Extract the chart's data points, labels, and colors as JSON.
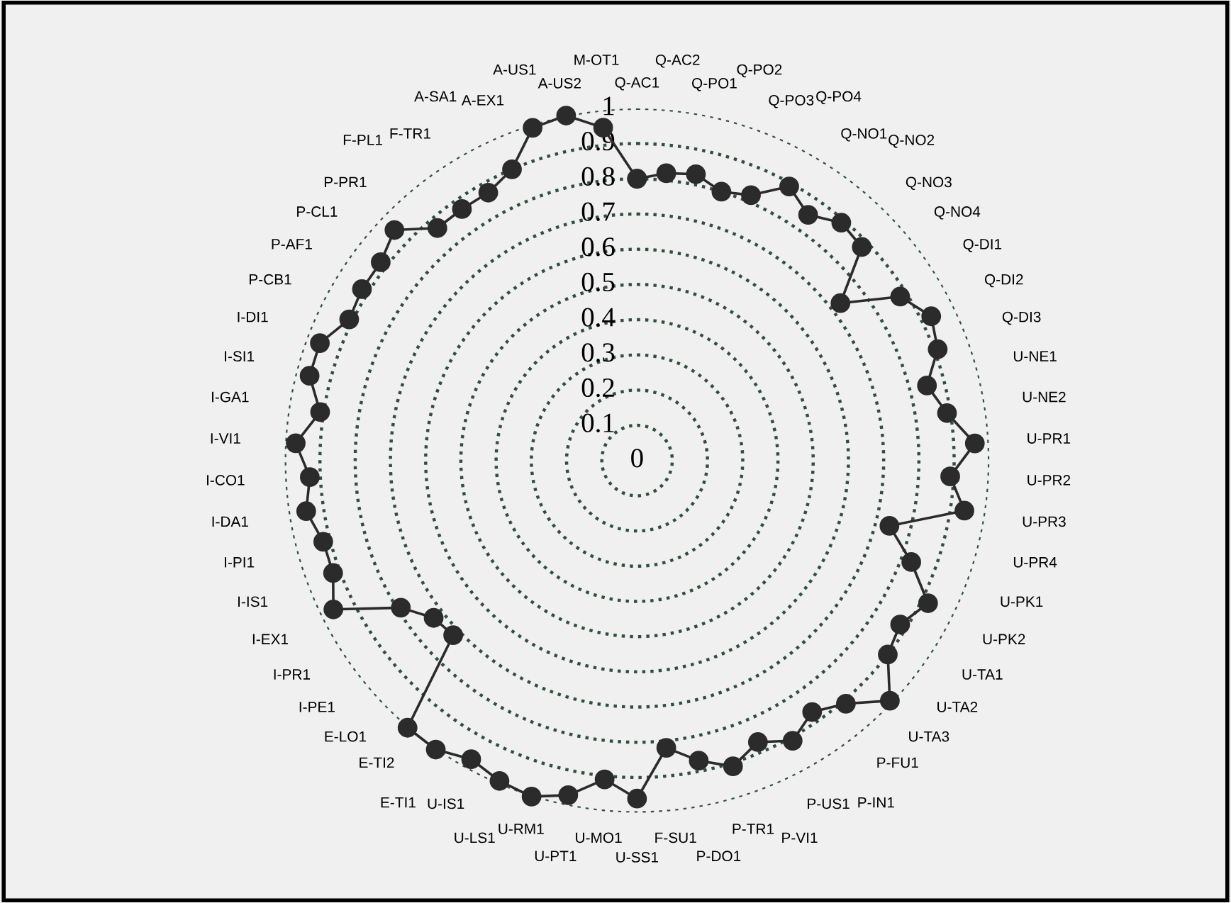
{
  "chart_data": {
    "type": "radar",
    "categories": [
      "Q-AC1",
      "Q-AC2",
      "Q-PO1",
      "Q-PO2",
      "Q-PO3",
      "Q-PO4",
      "Q-NO1",
      "Q-NO2",
      "Q-NO3",
      "Q-NO4",
      "Q-DI1",
      "Q-DI2",
      "Q-DI3",
      "U-NE1",
      "U-NE2",
      "U-PR1",
      "U-PR2",
      "U-PR3",
      "U-PR4",
      "U-PK1",
      "U-PK2",
      "U-TA1",
      "U-TA2",
      "U-TA3",
      "P-FU1",
      "P-IN1",
      "P-US1",
      "P-VI1",
      "P-TR1",
      "P-DO1",
      "F-SU1",
      "U-SS1",
      "U-MO1",
      "U-PT1",
      "U-RM1",
      "U-LS1",
      "U-IS1",
      "E-TI1",
      "E-TI2",
      "E-LO1",
      "I-PE1",
      "I-PR1",
      "I-EX1",
      "I-IS1",
      "I-PI1",
      "I-DA1",
      "I-CO1",
      "I-VI1",
      "I-GA1",
      "I-SI1",
      "I-DI1",
      "P-CB1",
      "P-AF1",
      "P-CL1",
      "P-PR1",
      "F-PL1",
      "F-TR1",
      "A-SA1",
      "A-EX1",
      "A-US1",
      "A-US2",
      "M-OT1"
    ],
    "series": [
      {
        "color": "#2b2b2b",
        "values": [
          0.8,
          0.82,
          0.83,
          0.8,
          0.82,
          0.89,
          0.85,
          0.89,
          0.88,
          0.73,
          0.88,
          0.93,
          0.91,
          0.85,
          0.89,
          0.96,
          0.89,
          0.94,
          0.74,
          0.83,
          0.92,
          0.88,
          0.9,
          0.99,
          0.91,
          0.87,
          0.91,
          0.87,
          0.91,
          0.87,
          0.82,
          0.96,
          0.91,
          0.97,
          1.0,
          0.99,
          0.97,
          1.0,
          1.0,
          0.72,
          0.73,
          0.79,
          0.96,
          0.92,
          0.92,
          0.95,
          0.93,
          0.97,
          0.91,
          0.96,
          0.96,
          0.91,
          0.92,
          0.92,
          0.95,
          0.87,
          0.87,
          0.87,
          0.9,
          0.99,
          1.0,
          0.95
        ]
      }
    ],
    "ylim": [
      0,
      1
    ],
    "yticks": [
      0,
      0.1,
      0.2,
      0.3,
      0.4,
      0.5,
      0.6,
      0.7,
      0.8,
      0.9,
      1
    ],
    "grid": "y",
    "marker": "circle",
    "line_style": "solid",
    "legend": false
  }
}
